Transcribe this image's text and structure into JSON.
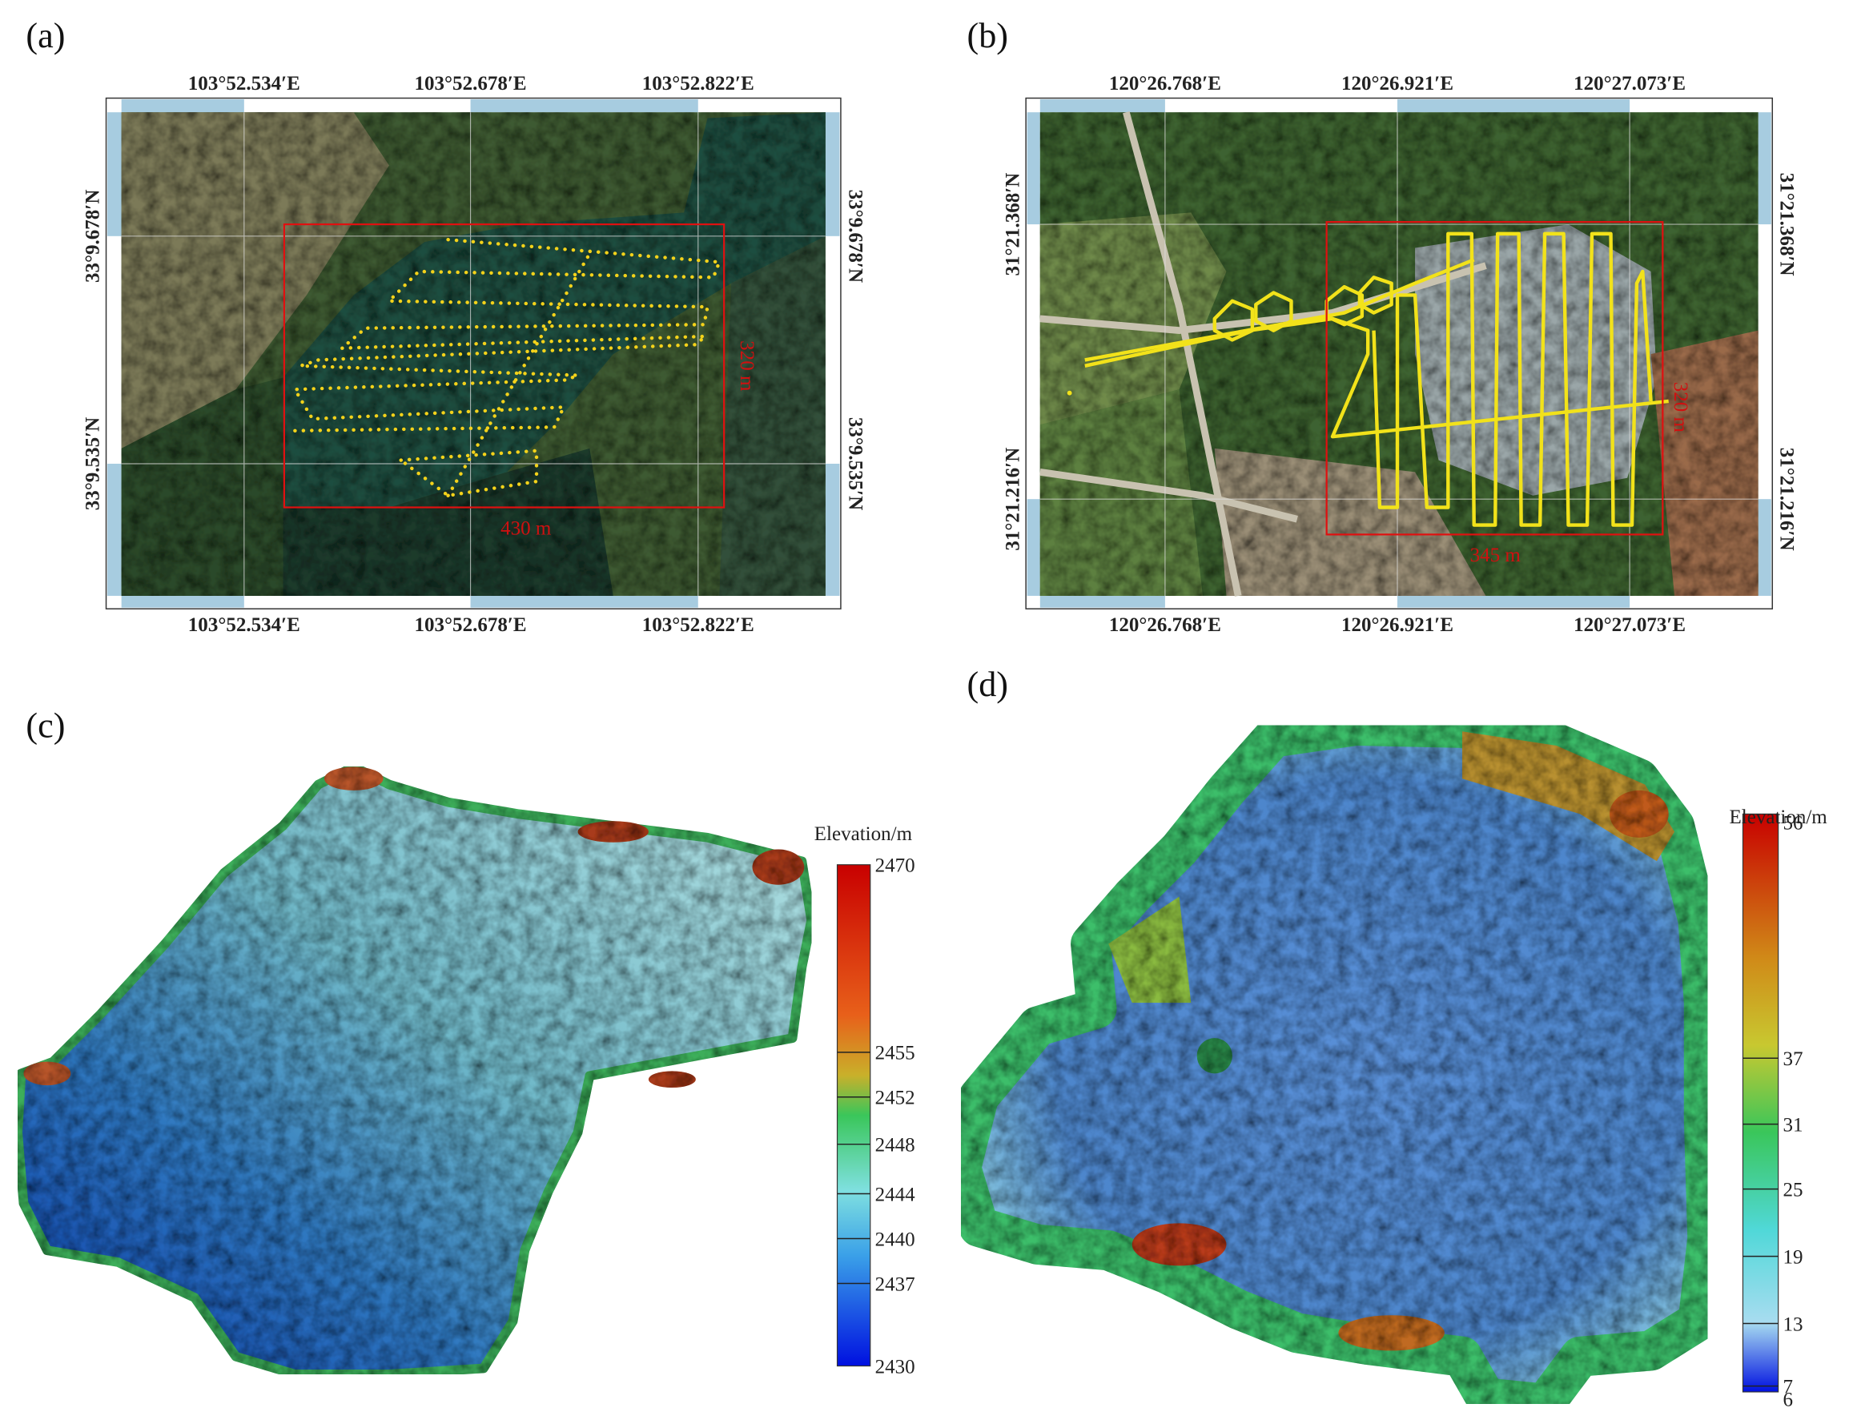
{
  "panels": [
    {
      "label": "(a)",
      "top_labels": [
        "103°52.534′E",
        "103°52.678′E",
        "103°52.822′E"
      ],
      "bottom_labels": [
        "103°52.534′E",
        "103°52.678′E",
        "103°52.822′E"
      ],
      "left_labels": [
        "33°9.678′N",
        "33°9.535′N"
      ],
      "right_labels": [
        "33°9.678′N",
        "33°9.535′N"
      ],
      "width_label": "430 m",
      "height_label": "320 m"
    },
    {
      "label": "(b)",
      "top_labels": [
        "120°26.768′E",
        "120°26.921′E",
        "120°27.073′E"
      ],
      "bottom_labels": [
        "120°26.768′E",
        "120°26.921′E",
        "120°27.073′E"
      ],
      "left_labels": [
        "31°21.368′N",
        "31°21.216′N"
      ],
      "right_labels": [
        "31°21.368′N",
        "31°21.216′N"
      ],
      "width_label": "345 m",
      "height_label": "320 m"
    },
    {
      "label": "(c)",
      "colorbar_title": "Elevation/m",
      "colorbar_ticks": [
        2470,
        2455,
        2452,
        2448,
        2444,
        2440,
        2437,
        2430
      ]
    },
    {
      "label": "(d)",
      "colorbar_title": "Elevation/m",
      "colorbar_ticks": [
        56,
        37,
        31,
        25,
        19,
        13,
        7,
        6
      ]
    }
  ]
}
